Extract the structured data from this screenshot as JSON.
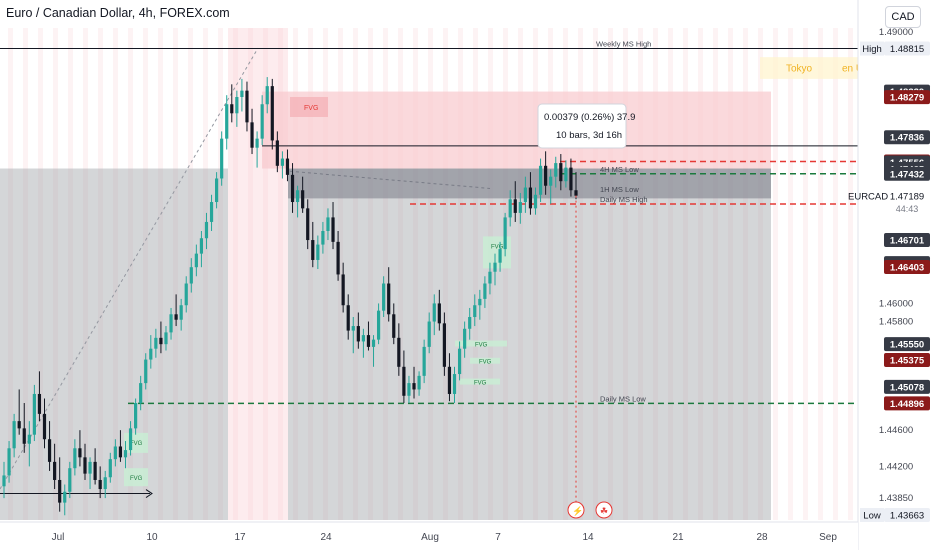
{
  "header": {
    "title": "Euro / Canadian Dollar, 4h, FOREX.com",
    "currency": "CAD"
  },
  "colors": {
    "up": "#26a69a",
    "down": "#131722",
    "red_zone": "#f8c9cd",
    "gray_zone": "#9fa3a9",
    "dark_zone": "#787b86",
    "red_line": "#e53935",
    "green_line": "#1b7a3e",
    "badge_red": "#8b1a1a",
    "badge_dark": "#363a45",
    "fvg_green": "#c8efd5"
  },
  "chart_data": {
    "type": "candlestick",
    "symbol": "EURCAD",
    "last_price": "1.47189",
    "countdown": "44:43",
    "ylim": [
      1.4363,
      1.4902
    ],
    "x_ticks": [
      "Jul",
      "10",
      "17",
      "24",
      "Aug",
      "7",
      "14",
      "21",
      "28",
      "Sep"
    ],
    "y_ticks": [
      "1.49000",
      "1.46000",
      "1.45800",
      "1.44600",
      "1.44200",
      "1.43850"
    ],
    "price_badges": [
      {
        "label": "High",
        "value": "1.48815",
        "style": "light"
      },
      {
        "label": "",
        "value": "1.48339",
        "style": "dark"
      },
      {
        "label": "",
        "value": "1.48279",
        "style": "red"
      },
      {
        "label": "",
        "value": "1.47836",
        "style": "dark"
      },
      {
        "label": "",
        "value": "1.47568",
        "style": "red"
      },
      {
        "label": "",
        "value": "1.47556",
        "style": "dark"
      },
      {
        "label": "",
        "value": "1.47485",
        "style": "dark"
      },
      {
        "label": "",
        "value": "1.47432",
        "style": "dark"
      },
      {
        "label": "",
        "value": "1.46701",
        "style": "dark"
      },
      {
        "label": "",
        "value": "1.46445",
        "style": "dark"
      },
      {
        "label": "",
        "value": "1.46422",
        "style": "dark"
      },
      {
        "label": "",
        "value": "1.46403",
        "style": "red"
      },
      {
        "label": "",
        "value": "1.45550",
        "style": "dark"
      },
      {
        "label": "",
        "value": "1.45375",
        "style": "red"
      },
      {
        "label": "",
        "value": "1.45078",
        "style": "dark"
      },
      {
        "label": "",
        "value": "1.44896",
        "style": "red"
      },
      {
        "label": "Low",
        "value": "1.43663",
        "style": "light"
      }
    ],
    "level_lines": [
      {
        "name": "weekly-ms-high",
        "label": "Weekly MS High",
        "price": 1.48815,
        "style": "solid-dark"
      },
      {
        "name": "4h-ms-low",
        "label": "4H MS Low",
        "price": 1.47432,
        "style": "dashed-green"
      },
      {
        "name": "1h-ms-low",
        "label": "1H MS Low",
        "price": 1.4721,
        "style": "none"
      },
      {
        "name": "daily-ms-high",
        "label": "Daily MS High",
        "price": 1.47098,
        "style": "dashed-red"
      },
      {
        "name": "red-dashed-upper",
        "label": "",
        "price": 1.47568,
        "style": "dashed-red"
      },
      {
        "name": "black-mid",
        "label": "",
        "price": 1.4774,
        "style": "solid-dark"
      },
      {
        "name": "daily-ms-low",
        "label": "Daily MS Low",
        "price": 1.44896,
        "style": "dashed-green"
      }
    ],
    "measure_box": {
      "line1": "0.00379 (0.26%) 37.9",
      "line2": "10 bars, 3d 16h"
    },
    "fvg_labels": [
      "FVG",
      "FVG",
      "FVG",
      "FVG",
      "FVG",
      "FVG",
      "FVG",
      "FVG"
    ],
    "session_labels": [
      "Tokyo",
      "en Un"
    ],
    "candles": [
      [
        1.4398,
        1.4425,
        1.4385,
        1.441
      ],
      [
        1.441,
        1.4448,
        1.4402,
        1.444
      ],
      [
        1.444,
        1.4478,
        1.443,
        1.447
      ],
      [
        1.447,
        1.4505,
        1.4455,
        1.4462
      ],
      [
        1.4462,
        1.449,
        1.4435,
        1.4445
      ],
      [
        1.4445,
        1.447,
        1.442,
        1.4455
      ],
      [
        1.4455,
        1.451,
        1.4448,
        1.45
      ],
      [
        1.45,
        1.4525,
        1.447,
        1.4478
      ],
      [
        1.4478,
        1.4495,
        1.444,
        1.445
      ],
      [
        1.445,
        1.447,
        1.4415,
        1.4425
      ],
      [
        1.4425,
        1.4445,
        1.4395,
        1.4405
      ],
      [
        1.4405,
        1.443,
        1.437,
        1.438
      ],
      [
        1.438,
        1.44,
        1.4366,
        1.4392
      ],
      [
        1.4392,
        1.4425,
        1.4385,
        1.4418
      ],
      [
        1.4418,
        1.445,
        1.441,
        1.444
      ],
      [
        1.444,
        1.446,
        1.442,
        1.443
      ],
      [
        1.443,
        1.4445,
        1.4405,
        1.4412
      ],
      [
        1.4412,
        1.443,
        1.4395,
        1.4425
      ],
      [
        1.4425,
        1.444,
        1.44,
        1.4405
      ],
      [
        1.4405,
        1.442,
        1.4385,
        1.4395
      ],
      [
        1.4395,
        1.4415,
        1.4385,
        1.4408
      ],
      [
        1.4408,
        1.4435,
        1.4402,
        1.4428
      ],
      [
        1.4428,
        1.445,
        1.442,
        1.4442
      ],
      [
        1.4442,
        1.446,
        1.4425,
        1.443
      ],
      [
        1.443,
        1.4448,
        1.4418,
        1.4438
      ],
      [
        1.4438,
        1.447,
        1.4432,
        1.4462
      ],
      [
        1.4462,
        1.4495,
        1.4455,
        1.449
      ],
      [
        1.449,
        1.452,
        1.4482,
        1.4512
      ],
      [
        1.4512,
        1.4545,
        1.4505,
        1.4538
      ],
      [
        1.4538,
        1.4565,
        1.4528,
        1.455
      ],
      [
        1.455,
        1.4572,
        1.454,
        1.4562
      ],
      [
        1.4562,
        1.458,
        1.4545,
        1.4555
      ],
      [
        1.4555,
        1.4575,
        1.4548,
        1.4568
      ],
      [
        1.4568,
        1.4595,
        1.456,
        1.4588
      ],
      [
        1.4588,
        1.461,
        1.4575,
        1.4582
      ],
      [
        1.4582,
        1.4605,
        1.457,
        1.4598
      ],
      [
        1.4598,
        1.463,
        1.459,
        1.4622
      ],
      [
        1.4622,
        1.465,
        1.4612,
        1.464
      ],
      [
        1.464,
        1.4665,
        1.463,
        1.4655
      ],
      [
        1.4655,
        1.468,
        1.464,
        1.4672
      ],
      [
        1.4672,
        1.47,
        1.466,
        1.469
      ],
      [
        1.469,
        1.472,
        1.468,
        1.4712
      ],
      [
        1.4712,
        1.4745,
        1.4705,
        1.4738
      ],
      [
        1.4738,
        1.479,
        1.473,
        1.4782
      ],
      [
        1.4782,
        1.483,
        1.477,
        1.482
      ],
      [
        1.482,
        1.4842,
        1.48,
        1.481
      ],
      [
        1.481,
        1.4835,
        1.4795,
        1.4828
      ],
      [
        1.4828,
        1.4848,
        1.4812,
        1.4835
      ],
      [
        1.4835,
        1.4845,
        1.479,
        1.48
      ],
      [
        1.48,
        1.4815,
        1.4765,
        1.4772
      ],
      [
        1.4772,
        1.479,
        1.475,
        1.4782
      ],
      [
        1.4782,
        1.483,
        1.4775,
        1.482
      ],
      [
        1.482,
        1.485,
        1.481,
        1.484
      ],
      [
        1.484,
        1.4848,
        1.477,
        1.478
      ],
      [
        1.478,
        1.479,
        1.4745,
        1.4752
      ],
      [
        1.4752,
        1.4768,
        1.4738,
        1.476
      ],
      [
        1.476,
        1.477,
        1.4735,
        1.4742
      ],
      [
        1.4742,
        1.4755,
        1.47,
        1.4712
      ],
      [
        1.4712,
        1.473,
        1.4695,
        1.4725
      ],
      [
        1.4725,
        1.474,
        1.47,
        1.4705
      ],
      [
        1.4705,
        1.4715,
        1.466,
        1.467
      ],
      [
        1.467,
        1.469,
        1.464,
        1.4648
      ],
      [
        1.4648,
        1.4675,
        1.4638,
        1.4665
      ],
      [
        1.4665,
        1.469,
        1.4655,
        1.468
      ],
      [
        1.468,
        1.4705,
        1.467,
        1.4695
      ],
      [
        1.4695,
        1.4712,
        1.466,
        1.4668
      ],
      [
        1.4668,
        1.468,
        1.4625,
        1.4632
      ],
      [
        1.4632,
        1.4645,
        1.459,
        1.4598
      ],
      [
        1.4598,
        1.461,
        1.456,
        1.457
      ],
      [
        1.457,
        1.4585,
        1.4545,
        1.4575
      ],
      [
        1.4575,
        1.459,
        1.455,
        1.4558
      ],
      [
        1.4558,
        1.4572,
        1.454,
        1.4565
      ],
      [
        1.4565,
        1.458,
        1.4548,
        1.4552
      ],
      [
        1.4552,
        1.4565,
        1.453,
        1.456
      ],
      [
        1.456,
        1.46,
        1.4555,
        1.4592
      ],
      [
        1.4592,
        1.463,
        1.4585,
        1.4622
      ],
      [
        1.4622,
        1.464,
        1.458,
        1.4588
      ],
      [
        1.4588,
        1.46,
        1.4555,
        1.4562
      ],
      [
        1.4562,
        1.4578,
        1.452,
        1.453
      ],
      [
        1.453,
        1.4548,
        1.449,
        1.4498
      ],
      [
        1.4498,
        1.452,
        1.449,
        1.4512
      ],
      [
        1.4512,
        1.453,
        1.4495,
        1.4505
      ],
      [
        1.4505,
        1.4525,
        1.4498,
        1.452
      ],
      [
        1.452,
        1.456,
        1.4512,
        1.4552
      ],
      [
        1.4552,
        1.459,
        1.4545,
        1.458
      ],
      [
        1.458,
        1.461,
        1.4565,
        1.46
      ],
      [
        1.46,
        1.4615,
        1.457,
        1.4578
      ],
      [
        1.4578,
        1.459,
        1.452,
        1.453
      ],
      [
        1.453,
        1.4545,
        1.4492,
        1.45
      ],
      [
        1.45,
        1.453,
        1.449,
        1.4522
      ],
      [
        1.4522,
        1.4558,
        1.4515,
        1.455
      ],
      [
        1.455,
        1.458,
        1.454,
        1.4572
      ],
      [
        1.4572,
        1.4595,
        1.456,
        1.4585
      ],
      [
        1.4585,
        1.461,
        1.4575,
        1.4598
      ],
      [
        1.4598,
        1.4615,
        1.4582,
        1.4605
      ],
      [
        1.4605,
        1.463,
        1.4595,
        1.4622
      ],
      [
        1.4622,
        1.4645,
        1.461,
        1.4635
      ],
      [
        1.4635,
        1.4655,
        1.462,
        1.4645
      ],
      [
        1.4645,
        1.4668,
        1.4635,
        1.466
      ],
      [
        1.466,
        1.47,
        1.4652,
        1.4695
      ],
      [
        1.4695,
        1.4725,
        1.4685,
        1.4715
      ],
      [
        1.4715,
        1.4735,
        1.469,
        1.47
      ],
      [
        1.47,
        1.4722,
        1.4688,
        1.4712
      ],
      [
        1.4712,
        1.474,
        1.47,
        1.4728
      ],
      [
        1.4728,
        1.4745,
        1.4698,
        1.4705
      ],
      [
        1.4705,
        1.4728,
        1.4698,
        1.472
      ],
      [
        1.472,
        1.476,
        1.4712,
        1.4752
      ],
      [
        1.4752,
        1.4768,
        1.472,
        1.473
      ],
      [
        1.473,
        1.4748,
        1.471,
        1.474
      ],
      [
        1.474,
        1.4762,
        1.4728,
        1.4755
      ],
      [
        1.4755,
        1.4765,
        1.4725,
        1.4735
      ],
      [
        1.4735,
        1.4758,
        1.4728,
        1.475
      ],
      [
        1.475,
        1.476,
        1.4718,
        1.4725
      ],
      [
        1.4725,
        1.4745,
        1.4715,
        1.4719
      ]
    ]
  }
}
